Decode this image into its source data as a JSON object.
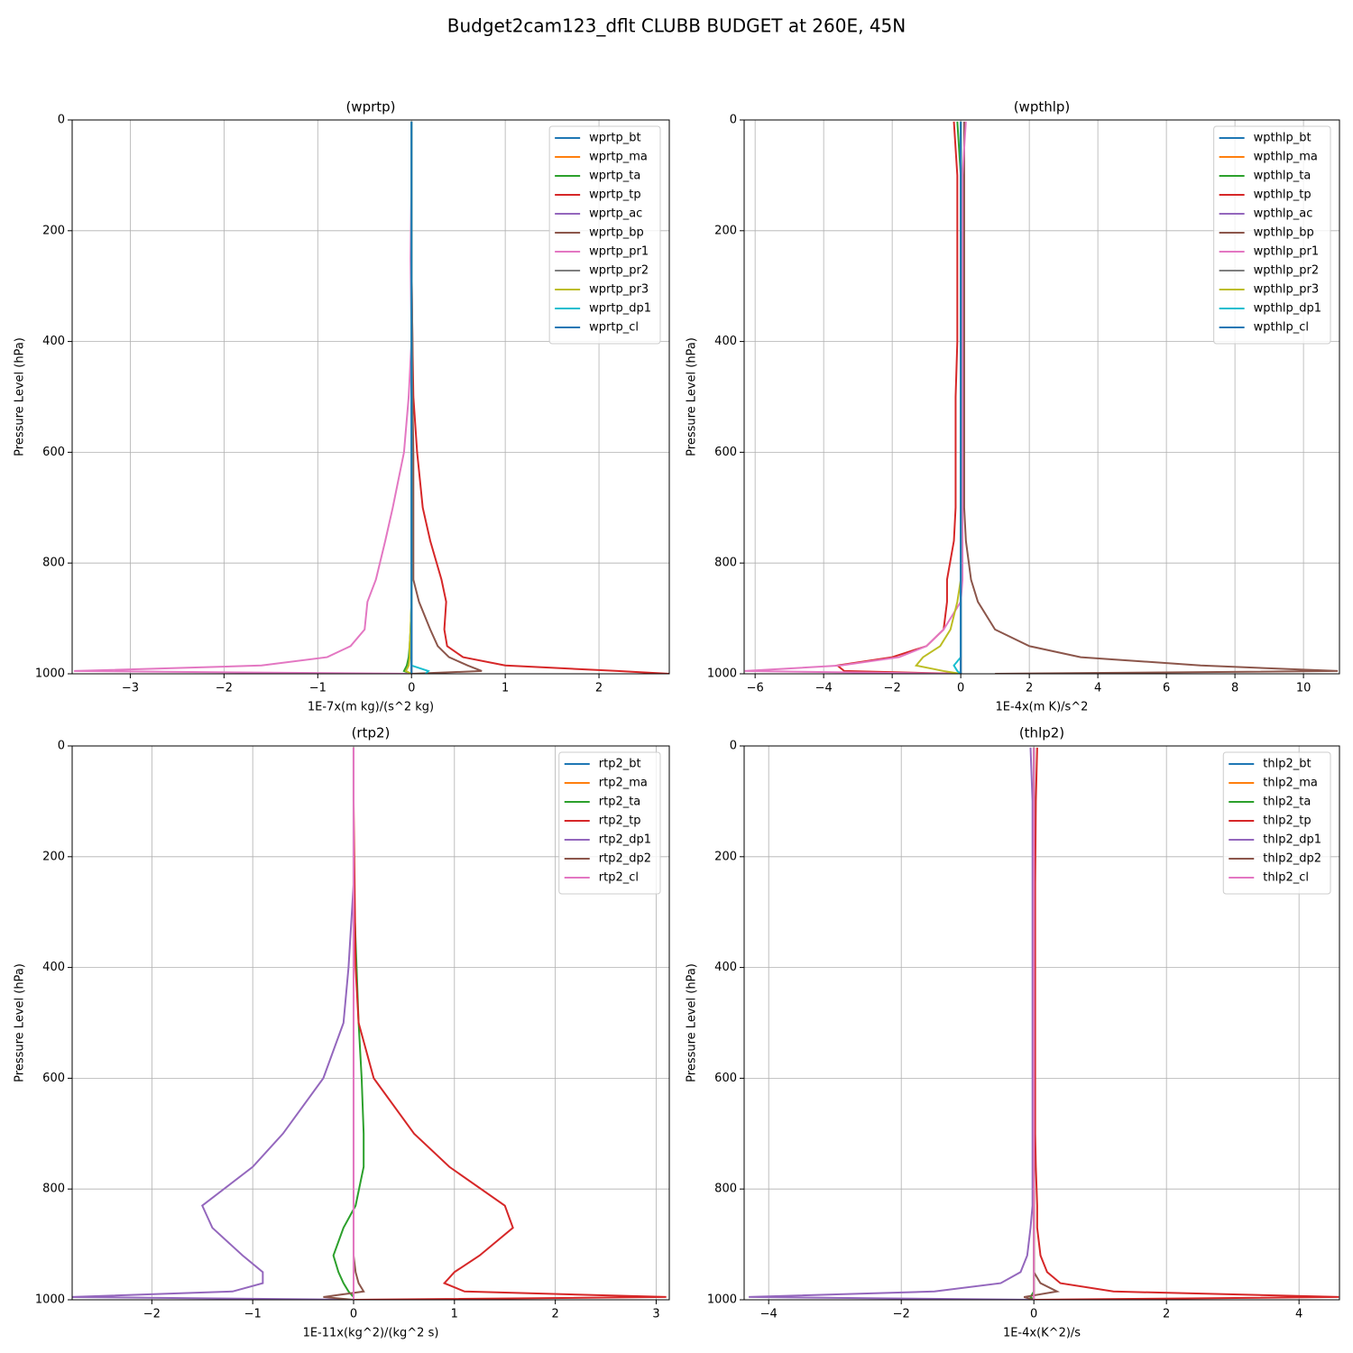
{
  "title": "Budget2cam123_dflt CLUBB BUDGET at 260E, 45N",
  "chart_data": [
    {
      "type": "line",
      "title": "(wprtp)",
      "xlabel": "1E-7x(m kg)/(s^2 kg)",
      "ylabel": "Pressure Level (hPa)",
      "xlim": [
        -3.62,
        2.75
      ],
      "xticks": [
        {
          "value": -3,
          "label": "−3"
        },
        {
          "value": -2,
          "label": "−2"
        },
        {
          "value": -1,
          "label": "−1"
        },
        0,
        1,
        2
      ],
      "ylim": [
        1000,
        0
      ],
      "yticks": [
        0,
        200,
        400,
        600,
        800,
        1000
      ],
      "grid": true,
      "legend": "upper right",
      "y": [
        3,
        100,
        250,
        400,
        500,
        600,
        700,
        760,
        830,
        870,
        920,
        950,
        970,
        985,
        995,
        1000
      ],
      "series": [
        {
          "name": "wprtp_bt",
          "color": "#1f77b4",
          "values": [
            0,
            0,
            0,
            0,
            0,
            0,
            0,
            0,
            0,
            0,
            0,
            0,
            0,
            0,
            0,
            0
          ]
        },
        {
          "name": "wprtp_ma",
          "color": "#ff7f0e",
          "values": [
            0,
            0,
            0,
            0,
            0,
            0,
            0,
            0,
            0,
            0,
            0,
            0,
            0,
            0,
            0,
            0
          ]
        },
        {
          "name": "wprtp_ta",
          "color": "#2ca02c",
          "values": [
            0,
            0,
            0,
            0,
            0,
            0,
            0,
            0,
            0,
            0,
            -0.01,
            -0.02,
            -0.03,
            -0.05,
            -0.08,
            0
          ]
        },
        {
          "name": "wprtp_tp",
          "color": "#d62728",
          "values": [
            0,
            0,
            0,
            0.01,
            0.02,
            0.06,
            0.12,
            0.2,
            0.32,
            0.37,
            0.35,
            0.38,
            0.55,
            1.0,
            2.2,
            2.75
          ]
        },
        {
          "name": "wprtp_ac",
          "color": "#9467bd",
          "values": [
            0,
            0,
            0,
            0,
            0,
            0,
            0,
            0,
            0,
            0,
            0,
            0,
            0,
            0,
            0,
            0
          ]
        },
        {
          "name": "wprtp_bp",
          "color": "#8c564b",
          "values": [
            0,
            0,
            0,
            0.01,
            0.01,
            0.02,
            0.02,
            0.02,
            0.02,
            0.08,
            0.2,
            0.28,
            0.4,
            0.6,
            0.75,
            0
          ]
        },
        {
          "name": "wprtp_pr1",
          "color": "#e377c2",
          "values": [
            0,
            0,
            -0.01,
            0,
            -0.03,
            -0.08,
            -0.2,
            -0.28,
            -0.38,
            -0.47,
            -0.5,
            -0.65,
            -0.9,
            -1.6,
            -3.6,
            0
          ]
        },
        {
          "name": "wprtp_pr2",
          "color": "#7f7f7f",
          "values": [
            0,
            0,
            0,
            0,
            0,
            0,
            0,
            0,
            0,
            0,
            0,
            0,
            0,
            0,
            0,
            0
          ]
        },
        {
          "name": "wprtp_pr3",
          "color": "#bcbd22",
          "values": [
            0,
            0,
            0,
            0,
            0,
            0,
            0,
            0,
            0,
            0,
            -0.01,
            -0.02,
            -0.02,
            -0.03,
            -0.06,
            0
          ]
        },
        {
          "name": "wprtp_dp1",
          "color": "#17becf",
          "values": [
            0,
            0,
            0,
            0,
            0,
            0,
            0,
            0,
            0,
            0,
            0,
            0,
            0,
            0,
            0.18,
            0.15
          ]
        },
        {
          "name": "wprtp_cl",
          "color": "#1f77b4",
          "values": [
            0,
            0,
            0,
            0,
            0,
            0,
            0,
            0,
            0,
            0,
            0,
            0,
            0,
            0,
            0,
            0
          ]
        }
      ]
    },
    {
      "type": "line",
      "title": "(wpthlp)",
      "xlabel": "1E-4x(m K)/s^2",
      "ylabel": "Pressure Level (hPa)",
      "xlim": [
        -6.32,
        11.05
      ],
      "xticks": [
        {
          "value": -6,
          "label": "−6"
        },
        {
          "value": -4,
          "label": "−4"
        },
        {
          "value": -2,
          "label": "−2"
        },
        0,
        2,
        4,
        6,
        8,
        10
      ],
      "ylim": [
        1000,
        0
      ],
      "yticks": [
        0,
        200,
        400,
        600,
        800,
        1000
      ],
      "grid": true,
      "legend": "upper right",
      "y": [
        3,
        100,
        250,
        400,
        500,
        600,
        700,
        760,
        830,
        870,
        920,
        950,
        970,
        985,
        995,
        1000
      ],
      "series": [
        {
          "name": "wpthlp_bt",
          "color": "#1f77b4",
          "values": [
            0,
            0,
            0,
            0,
            0,
            0,
            0,
            0,
            0,
            0,
            0,
            0,
            0,
            0,
            0,
            0
          ]
        },
        {
          "name": "wpthlp_ma",
          "color": "#ff7f0e",
          "values": [
            0,
            0,
            0,
            0,
            0,
            0,
            0,
            0,
            0,
            0,
            0,
            0,
            0,
            0,
            0,
            0
          ]
        },
        {
          "name": "wpthlp_ta",
          "color": "#2ca02c",
          "values": [
            -0.1,
            0,
            0,
            0,
            0,
            0,
            0,
            0,
            0,
            0,
            0,
            0,
            0,
            0,
            0,
            0
          ]
        },
        {
          "name": "wpthlp_tp",
          "color": "#d62728",
          "values": [
            -0.2,
            -0.1,
            -0.1,
            -0.1,
            -0.15,
            -0.15,
            -0.15,
            -0.2,
            -0.4,
            -0.4,
            -0.5,
            -1.0,
            -2,
            -3.6,
            -3.4,
            0
          ]
        },
        {
          "name": "wpthlp_ac",
          "color": "#9467bd",
          "values": [
            0,
            0,
            0,
            0,
            0,
            0,
            0,
            0,
            0,
            0,
            0,
            0,
            0,
            0,
            0,
            0
          ]
        },
        {
          "name": "wpthlp_bp",
          "color": "#8c564b",
          "values": [
            0.1,
            0.1,
            0.1,
            0.1,
            0.1,
            0.1,
            0.1,
            0.15,
            0.3,
            0.5,
            1.0,
            2.0,
            3.5,
            7,
            11,
            1
          ]
        },
        {
          "name": "wpthlp_pr1",
          "color": "#e377c2",
          "values": [
            0.15,
            0.05,
            0.05,
            0.05,
            0.05,
            0.05,
            0.05,
            0.05,
            0.05,
            0,
            -0.5,
            -1.0,
            -1.8,
            -3.5,
            -6.3,
            0
          ]
        },
        {
          "name": "wpthlp_pr2",
          "color": "#7f7f7f",
          "values": [
            0,
            0,
            0,
            0,
            0,
            0,
            0,
            0,
            0,
            0,
            0,
            0,
            0,
            0,
            0,
            0
          ]
        },
        {
          "name": "wpthlp_pr3",
          "color": "#bcbd22",
          "values": [
            0,
            0,
            0,
            0,
            0,
            0,
            0,
            0,
            0,
            -0.1,
            -0.3,
            -0.6,
            -1.1,
            -1.3,
            -0.5,
            0
          ]
        },
        {
          "name": "wpthlp_dp1",
          "color": "#17becf",
          "values": [
            0,
            0,
            0,
            0,
            0,
            0,
            0,
            0,
            0,
            0,
            0,
            0,
            0,
            -0.2,
            -0.1,
            0
          ]
        },
        {
          "name": "wpthlp_cl",
          "color": "#1f77b4",
          "values": [
            0,
            0,
            0,
            0,
            0,
            0,
            0,
            0,
            0,
            0,
            0,
            0,
            0,
            0,
            0,
            0
          ]
        }
      ]
    },
    {
      "type": "line",
      "title": "(rtp2)",
      "xlabel": "1E-11x(kg^2)/(kg^2 s)",
      "ylabel": "Pressure Level (hPa)",
      "xlim": [
        -2.79,
        3.13
      ],
      "xticks": [
        {
          "value": -2,
          "label": "−2"
        },
        {
          "value": -1,
          "label": "−1"
        },
        0,
        1,
        2,
        3
      ],
      "ylim": [
        1000,
        0
      ],
      "yticks": [
        0,
        200,
        400,
        600,
        800,
        1000
      ],
      "grid": true,
      "legend": "upper right",
      "y": [
        3,
        100,
        250,
        400,
        500,
        600,
        700,
        760,
        830,
        870,
        920,
        950,
        970,
        985,
        995,
        1000
      ],
      "series": [
        {
          "name": "rtp2_bt",
          "color": "#1f77b4",
          "values": [
            0,
            0,
            0,
            0,
            0,
            0,
            0,
            0,
            0,
            0,
            0,
            0,
            0,
            0,
            0,
            0
          ]
        },
        {
          "name": "rtp2_ma",
          "color": "#ff7f0e",
          "values": [
            0,
            0,
            0,
            0,
            0,
            0,
            0,
            0,
            0,
            0,
            0,
            0,
            0,
            0,
            0,
            0
          ]
        },
        {
          "name": "rtp2_ta",
          "color": "#2ca02c",
          "values": [
            0,
            0,
            0,
            0.03,
            0.05,
            0.08,
            0.1,
            0.1,
            0.02,
            -0.1,
            -0.2,
            -0.15,
            -0.1,
            -0.05,
            0,
            0
          ]
        },
        {
          "name": "rtp2_tp",
          "color": "#d62728",
          "values": [
            0,
            0,
            0.01,
            0.02,
            0.05,
            0.2,
            0.6,
            0.95,
            1.5,
            1.58,
            1.25,
            1.0,
            0.9,
            1.1,
            3.1,
            0
          ]
        },
        {
          "name": "rtp2_dp1",
          "color": "#9467bd",
          "values": [
            0,
            0,
            0,
            -0.05,
            -0.1,
            -0.3,
            -0.7,
            -1.0,
            -1.5,
            -1.4,
            -1.1,
            -0.9,
            -0.9,
            -1.2,
            -2.8,
            0
          ]
        },
        {
          "name": "rtp2_dp2",
          "color": "#8c564b",
          "values": [
            0,
            0,
            0,
            0,
            0,
            0,
            0,
            0,
            0,
            0,
            0,
            0.02,
            0.05,
            0.1,
            -0.3,
            0
          ]
        },
        {
          "name": "rtp2_cl",
          "color": "#e377c2",
          "values": [
            0,
            0,
            0,
            0,
            0,
            0,
            0,
            0,
            0,
            0,
            0,
            0,
            0,
            0,
            0,
            0
          ]
        }
      ]
    },
    {
      "type": "line",
      "title": "(thlp2)",
      "xlabel": "1E-4x(K^2)/s",
      "ylabel": "Pressure Level (hPa)",
      "xlim": [
        -4.37,
        4.61
      ],
      "xticks": [
        {
          "value": -4,
          "label": "−4"
        },
        {
          "value": -2,
          "label": "−2"
        },
        0,
        2,
        4
      ],
      "ylim": [
        1000,
        0
      ],
      "yticks": [
        0,
        200,
        400,
        600,
        800,
        1000
      ],
      "grid": true,
      "legend": "upper right",
      "y": [
        3,
        100,
        250,
        400,
        500,
        600,
        700,
        760,
        830,
        870,
        920,
        950,
        970,
        985,
        995,
        1000
      ],
      "series": [
        {
          "name": "thlp2_bt",
          "color": "#1f77b4",
          "values": [
            0,
            0,
            0,
            0,
            0,
            0,
            0,
            0,
            0,
            0,
            0,
            0,
            0,
            0,
            0,
            0
          ]
        },
        {
          "name": "thlp2_ma",
          "color": "#ff7f0e",
          "values": [
            0,
            0,
            0,
            0,
            0,
            0,
            0,
            0,
            0,
            0,
            0,
            0,
            0,
            0,
            0,
            0
          ]
        },
        {
          "name": "thlp2_ta",
          "color": "#2ca02c",
          "values": [
            0,
            0,
            0,
            0,
            0,
            0,
            0,
            0,
            0,
            0,
            0,
            0,
            0,
            0,
            -0.05,
            0
          ]
        },
        {
          "name": "thlp2_tp",
          "color": "#d62728",
          "values": [
            0.05,
            0.03,
            0.02,
            0.02,
            0.02,
            0.02,
            0.02,
            0.03,
            0.05,
            0.05,
            0.1,
            0.2,
            0.4,
            1.2,
            4.6,
            0
          ]
        },
        {
          "name": "thlp2_dp1",
          "color": "#9467bd",
          "values": [
            -0.05,
            -0.02,
            -0.02,
            -0.02,
            -0.02,
            -0.02,
            -0.02,
            -0.02,
            -0.02,
            -0.05,
            -0.1,
            -0.2,
            -0.5,
            -1.5,
            -4.3,
            0
          ]
        },
        {
          "name": "thlp2_dp2",
          "color": "#8c564b",
          "values": [
            0,
            0,
            0,
            0,
            0,
            0,
            0,
            0,
            0,
            0,
            0,
            0,
            0.1,
            0.35,
            -0.15,
            0
          ]
        },
        {
          "name": "thlp2_cl",
          "color": "#e377c2",
          "values": [
            0,
            0,
            0,
            0,
            0,
            0,
            0,
            0,
            0,
            0,
            0,
            0,
            0,
            0,
            0,
            0
          ]
        }
      ]
    }
  ]
}
